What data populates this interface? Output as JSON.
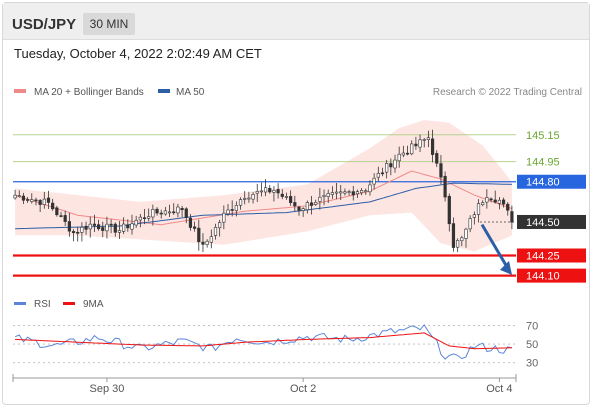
{
  "header": {
    "symbol": "USD/JPY",
    "timeframe": "30 MIN"
  },
  "timestamp": "Tuesday, October 4, 2022 2:02:49 AM CET",
  "copyright": "Research © 2022 Trading Central",
  "colors": {
    "ma20": "#f08a8a",
    "ma50": "#2d5ea8",
    "bands": "#fde0dc",
    "support": "#ee1111",
    "pivot": "#333333",
    "resistance_label": "#6aa530",
    "ma50_label": "#2866e0",
    "rsi": "#5b86d8",
    "rsi_ma": "#ee1111",
    "up_candle": "#ffffff",
    "down_candle": "#333333",
    "arrow": "#2d5ea8"
  },
  "chart_data": [
    {
      "type": "line",
      "title": "",
      "legend": [
        {
          "label": "MA 20 + Bollinger Bands",
          "color": "#f08a8a"
        },
        {
          "label": "MA 50",
          "color": "#2d5ea8"
        }
      ],
      "legend_position": "top-left",
      "ylim": [
        144.03,
        145.32
      ],
      "x_ticks": [
        "Sep 30",
        "Oct 2",
        "Oct 4"
      ],
      "x_tick_index": [
        22,
        69,
        116
      ],
      "levels": [
        {
          "label": "145.15",
          "value": 145.15,
          "kind": "resistance"
        },
        {
          "label": "144.95",
          "value": 144.95,
          "kind": "resistance"
        },
        {
          "label": "144.80",
          "value": 144.8,
          "kind": "ma50"
        },
        {
          "label": "144.50",
          "value": 144.5,
          "kind": "pivot"
        },
        {
          "label": "144.25",
          "value": 144.25,
          "kind": "support"
        },
        {
          "label": "144.10",
          "value": 144.1,
          "kind": "support"
        }
      ],
      "candle_count": 120,
      "close_anchors": [
        [
          0,
          144.7
        ],
        [
          8,
          144.64
        ],
        [
          14,
          144.42
        ],
        [
          18,
          144.48
        ],
        [
          25,
          144.44
        ],
        [
          32,
          144.56
        ],
        [
          40,
          144.6
        ],
        [
          45,
          144.31
        ],
        [
          50,
          144.55
        ],
        [
          55,
          144.7
        ],
        [
          62,
          144.74
        ],
        [
          68,
          144.6
        ],
        [
          72,
          144.66
        ],
        [
          78,
          144.71
        ],
        [
          84,
          144.75
        ],
        [
          88,
          144.88
        ],
        [
          92,
          145.0
        ],
        [
          96,
          145.07
        ],
        [
          99,
          145.13
        ],
        [
          101,
          144.92
        ],
        [
          103,
          144.7
        ],
        [
          105,
          144.33
        ],
        [
          107,
          144.37
        ],
        [
          110,
          144.57
        ],
        [
          113,
          144.71
        ],
        [
          116,
          144.66
        ],
        [
          119,
          144.52
        ]
      ],
      "ma20_anchors": [
        [
          0,
          144.7
        ],
        [
          15,
          144.55
        ],
        [
          35,
          144.48
        ],
        [
          55,
          144.58
        ],
        [
          70,
          144.62
        ],
        [
          85,
          144.73
        ],
        [
          95,
          144.88
        ],
        [
          102,
          144.82
        ],
        [
          110,
          144.7
        ],
        [
          119,
          144.6
        ]
      ],
      "ma50_anchors": [
        [
          0,
          144.45
        ],
        [
          25,
          144.47
        ],
        [
          45,
          144.55
        ],
        [
          65,
          144.57
        ],
        [
          85,
          144.65
        ],
        [
          96,
          144.75
        ],
        [
          105,
          144.79
        ],
        [
          119,
          144.78
        ]
      ],
      "bb_upper_anchors": [
        [
          0,
          144.75
        ],
        [
          15,
          144.7
        ],
        [
          30,
          144.65
        ],
        [
          50,
          144.7
        ],
        [
          70,
          144.78
        ],
        [
          85,
          145.05
        ],
        [
          92,
          145.2
        ],
        [
          98,
          145.26
        ],
        [
          104,
          145.24
        ],
        [
          112,
          145.07
        ],
        [
          119,
          144.8
        ]
      ],
      "bb_lower_anchors": [
        [
          0,
          144.4
        ],
        [
          15,
          144.4
        ],
        [
          30,
          144.37
        ],
        [
          50,
          144.33
        ],
        [
          70,
          144.43
        ],
        [
          85,
          144.55
        ],
        [
          95,
          144.57
        ],
        [
          102,
          144.34
        ],
        [
          110,
          144.28
        ],
        [
          119,
          144.4
        ]
      ],
      "forecast_arrow": {
        "from": 144.48,
        "to": 144.12
      }
    },
    {
      "type": "line",
      "title": "",
      "legend": [
        {
          "label": "RSI",
          "color": "#5b86d8"
        },
        {
          "label": "9MA",
          "color": "#ee1111"
        }
      ],
      "ylim": [
        20,
        78
      ],
      "y_ticks": [
        {
          "label": "70",
          "value": 70
        },
        {
          "label": "50",
          "value": 50
        },
        {
          "label": "30",
          "value": 30
        }
      ],
      "rsi_anchors": [
        [
          0,
          56
        ],
        [
          10,
          48
        ],
        [
          20,
          57
        ],
        [
          30,
          45
        ],
        [
          40,
          53
        ],
        [
          47,
          45
        ],
        [
          53,
          57
        ],
        [
          60,
          52
        ],
        [
          70,
          58
        ],
        [
          80,
          55
        ],
        [
          90,
          63
        ],
        [
          98,
          67
        ],
        [
          103,
          38
        ],
        [
          106,
          33
        ],
        [
          110,
          48
        ],
        [
          115,
          45
        ],
        [
          119,
          43
        ]
      ],
      "rsi_ma_anchors": [
        [
          0,
          55
        ],
        [
          15,
          52
        ],
        [
          30,
          49
        ],
        [
          45,
          48
        ],
        [
          55,
          52
        ],
        [
          70,
          55
        ],
        [
          85,
          57
        ],
        [
          98,
          62
        ],
        [
          104,
          48
        ],
        [
          110,
          45
        ],
        [
          119,
          46
        ]
      ]
    }
  ]
}
